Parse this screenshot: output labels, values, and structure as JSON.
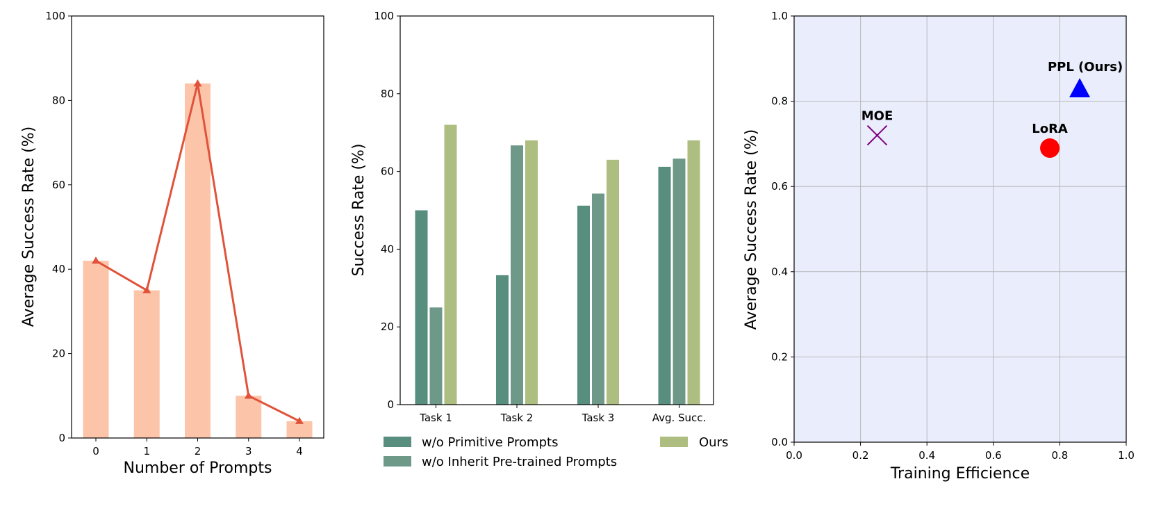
{
  "chart_data": [
    {
      "type": "bar+line",
      "categories": [
        "0",
        "1",
        "2",
        "3",
        "4"
      ],
      "values": [
        42,
        35,
        84,
        10,
        4
      ],
      "line_values": [
        42,
        35,
        84,
        10,
        4
      ],
      "xlabel": "Number of Prompts",
      "ylabel": "Average Success Rate (%)",
      "ylim": [
        0,
        100
      ],
      "yticks": [
        0,
        20,
        40,
        60,
        80,
        100
      ],
      "colors": {
        "bar": "#fcc5a9",
        "line": "#e0533a"
      }
    },
    {
      "type": "bar",
      "categories": [
        "Task 1",
        "Task 2",
        "Task 3",
        "Avg. Succ."
      ],
      "series": [
        {
          "name": "w/o Primitive Prompts",
          "values": [
            50,
            33.3,
            51.2,
            61.2
          ],
          "color": "#578e7e"
        },
        {
          "name": "w/o Inherit Pre-trained Prompts",
          "values": [
            25,
            66.7,
            54.3,
            63.3
          ],
          "color": "#6e9888"
        },
        {
          "name": "Ours",
          "values": [
            72,
            68,
            63,
            68
          ],
          "color": "#adbe80"
        }
      ],
      "xlabel": "",
      "ylabel": "Success Rate (%)",
      "ylim": [
        0,
        100
      ],
      "yticks": [
        0,
        20,
        40,
        60,
        80,
        100
      ]
    },
    {
      "type": "scatter",
      "points": [
        {
          "name": "MOE",
          "x": 0.25,
          "y": 0.72,
          "marker": "x",
          "color": "#800080"
        },
        {
          "name": "LoRA",
          "x": 0.77,
          "y": 0.69,
          "marker": "circle",
          "color": "#ff0000"
        },
        {
          "name": "PPL (Ours)",
          "x": 0.86,
          "y": 0.83,
          "marker": "triangle",
          "color": "#0000ff"
        }
      ],
      "xlabel": "Training Efficience",
      "ylabel": "Average Success Rate (%)",
      "xlim": [
        0,
        1
      ],
      "ylim": [
        0,
        1
      ],
      "xticks": [
        "0.0",
        "0.2",
        "0.4",
        "0.6",
        "0.8",
        "1.0"
      ],
      "yticks": [
        "0.0",
        "0.2",
        "0.4",
        "0.6",
        "0.8",
        "1.0"
      ],
      "grid": true,
      "background": "#eaeefc"
    }
  ]
}
